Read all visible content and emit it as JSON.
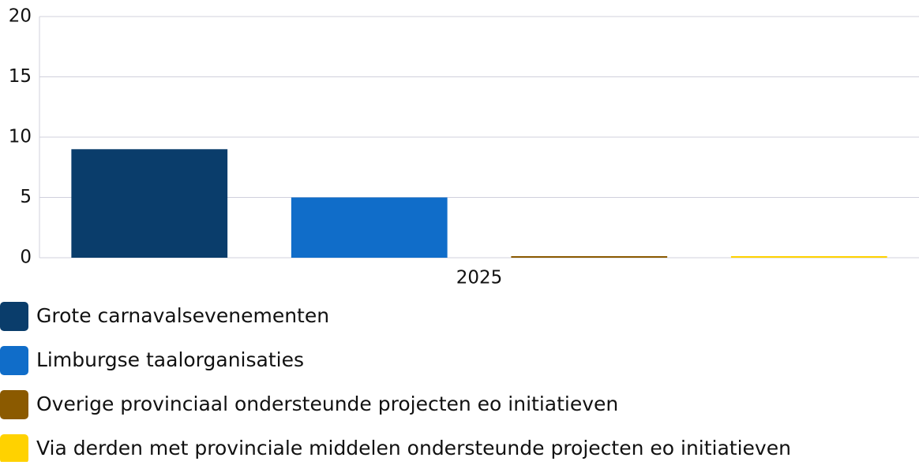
{
  "chart_data": {
    "type": "bar",
    "categories": [
      "2025"
    ],
    "series": [
      {
        "name": "Grote carnavalsevenementen",
        "color": "#0a3d6b",
        "values": [
          9
        ]
      },
      {
        "name": "Limburgse taalorganisaties",
        "color": "#106dc9",
        "values": [
          5
        ]
      },
      {
        "name": "Overige provinciaal ondersteunde projecten eo initiatieven",
        "color": "#8b5a00",
        "values": [
          0
        ]
      },
      {
        "name": "Via derden met provinciale middelen ondersteunde projecten eo initiatieven",
        "color": "#ffd200",
        "values": [
          0
        ]
      }
    ],
    "ylim": [
      0,
      20
    ],
    "yticks": [
      0,
      5,
      10,
      15,
      20
    ],
    "grid": true,
    "legend": "bottom"
  }
}
